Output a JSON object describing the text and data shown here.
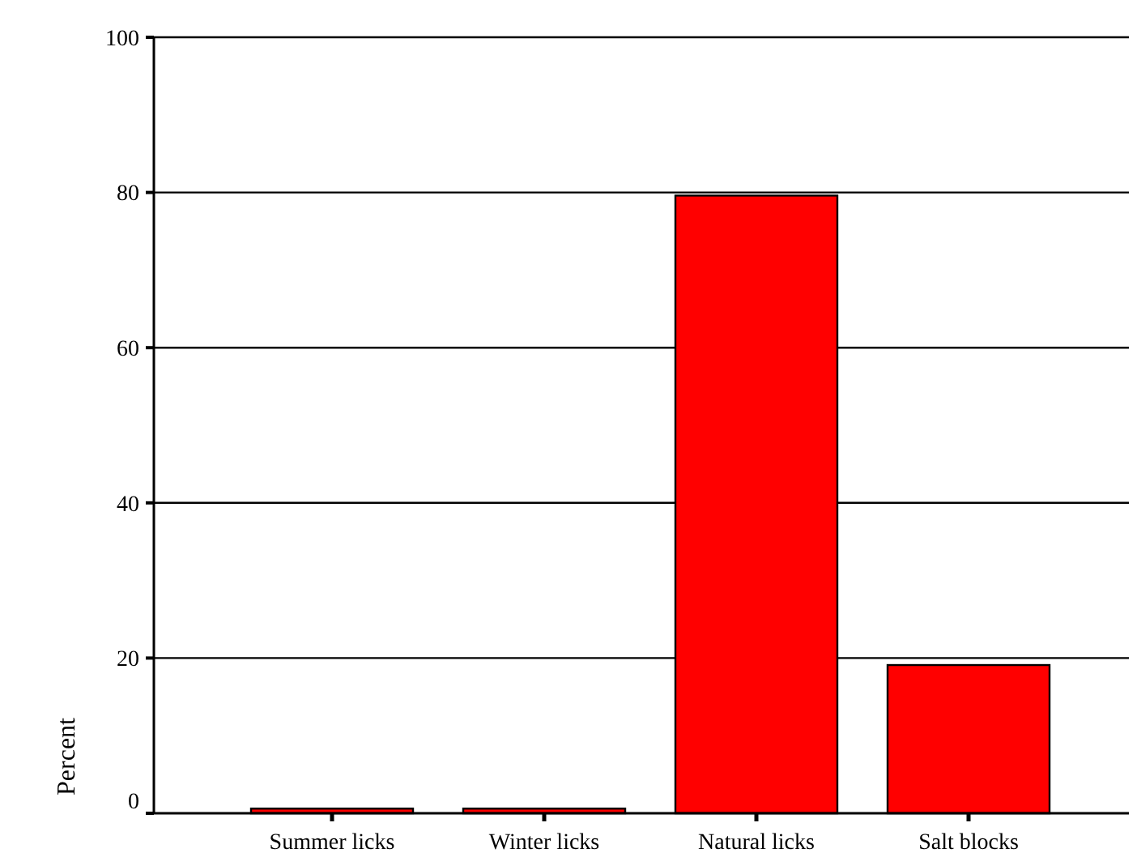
{
  "chart_data": {
    "type": "bar",
    "ylabel": "Percent",
    "categories": [
      "Summer licks",
      "Winter licks",
      "Natural licks",
      "Salt blocks"
    ],
    "values": [
      0.6,
      0.6,
      79.6,
      19.1
    ],
    "color": "#ff0000",
    "ylim": [
      0,
      100
    ],
    "yticks": [
      0,
      20,
      40,
      60,
      80,
      100
    ],
    "grid": "y"
  }
}
